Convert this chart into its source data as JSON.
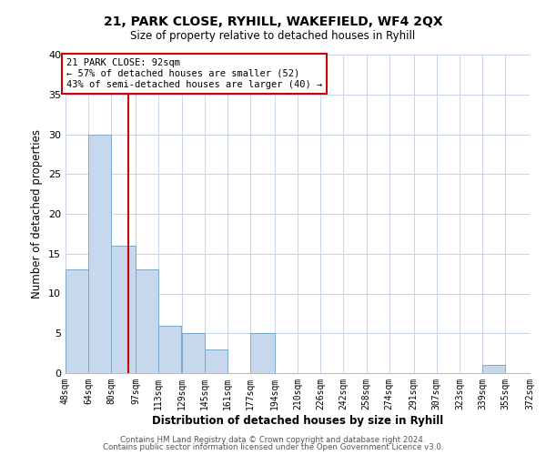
{
  "title1": "21, PARK CLOSE, RYHILL, WAKEFIELD, WF4 2QX",
  "title2": "Size of property relative to detached houses in Ryhill",
  "xlabel": "Distribution of detached houses by size in Ryhill",
  "ylabel": "Number of detached properties",
  "bin_edges": [
    48,
    64,
    80,
    97,
    113,
    129,
    145,
    161,
    177,
    194,
    210,
    226,
    242,
    258,
    274,
    291,
    307,
    323,
    339,
    355,
    372
  ],
  "bin_labels": [
    "48sqm",
    "64sqm",
    "80sqm",
    "97sqm",
    "113sqm",
    "129sqm",
    "145sqm",
    "161sqm",
    "177sqm",
    "194sqm",
    "210sqm",
    "226sqm",
    "242sqm",
    "258sqm",
    "274sqm",
    "291sqm",
    "307sqm",
    "323sqm",
    "339sqm",
    "355sqm",
    "372sqm"
  ],
  "counts": [
    13,
    30,
    16,
    13,
    6,
    5,
    3,
    0,
    5,
    0,
    0,
    0,
    0,
    0,
    0,
    0,
    0,
    0,
    1,
    0,
    0
  ],
  "bar_color": "#c8d8ec",
  "bar_edge_color": "#7ba8cc",
  "vline_x": 92,
  "vline_color": "#cc0000",
  "annotation_line1": "21 PARK CLOSE: 92sqm",
  "annotation_line2": "← 57% of detached houses are smaller (52)",
  "annotation_line3": "43% of semi-detached houses are larger (40) →",
  "annotation_box_color": "#cc0000",
  "ylim": [
    0,
    40
  ],
  "yticks": [
    0,
    5,
    10,
    15,
    20,
    25,
    30,
    35,
    40
  ],
  "background_color": "#ffffff",
  "grid_color": "#c8d4e8",
  "footnote1": "Contains HM Land Registry data © Crown copyright and database right 2024.",
  "footnote2": "Contains public sector information licensed under the Open Government Licence v3.0."
}
